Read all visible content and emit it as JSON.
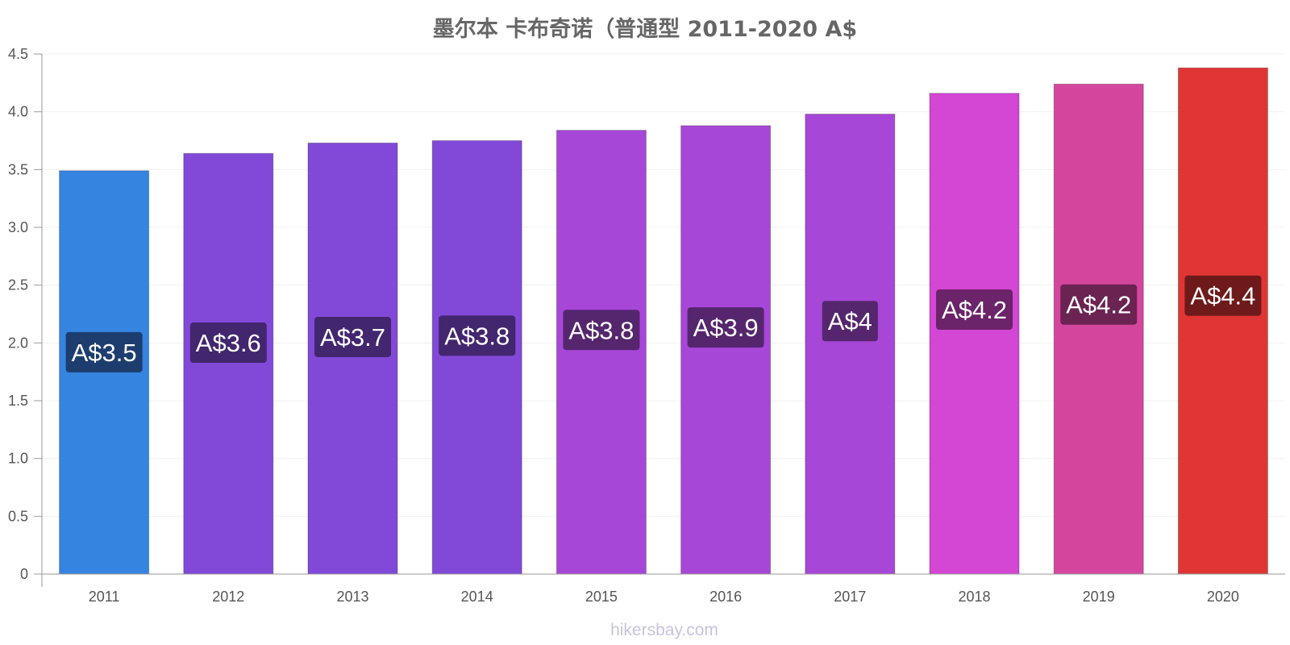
{
  "chart_data": {
    "type": "bar",
    "title": "墨尔本 卡布奇诺（普通型 2011-2020 A$",
    "xlabel": "",
    "ylabel": "",
    "ylim": [
      0,
      4.5
    ],
    "yticks": [
      "0",
      "0.5",
      "1.0",
      "1.5",
      "2.0",
      "2.5",
      "3.0",
      "3.5",
      "4.0",
      "4.5"
    ],
    "grid": true,
    "categories": [
      "2011",
      "2012",
      "2013",
      "2014",
      "2015",
      "2016",
      "2017",
      "2018",
      "2019",
      "2020"
    ],
    "values": [
      3.49,
      3.64,
      3.73,
      3.75,
      3.84,
      3.88,
      3.98,
      4.16,
      4.24,
      4.38
    ],
    "data_labels": [
      "A$3.5",
      "A$3.6",
      "A$3.7",
      "A$3.8",
      "A$3.8",
      "A$3.9",
      "A$4",
      "A$4.2",
      "A$4.2",
      "A$4.4"
    ],
    "colors": [
      "#3584e0",
      "#8249d9",
      "#8249d9",
      "#8249d9",
      "#a747d8",
      "#a747d8",
      "#a747d8",
      "#d446d4",
      "#d4469d",
      "#e03535"
    ],
    "label_colors": [
      "#1d3d6e",
      "#42266e",
      "#42266e",
      "#42266e",
      "#55266e",
      "#55266e",
      "#55266e",
      "#6b2369",
      "#6b2351",
      "#6e1a1a"
    ],
    "watermark": "hikersbay.com"
  }
}
